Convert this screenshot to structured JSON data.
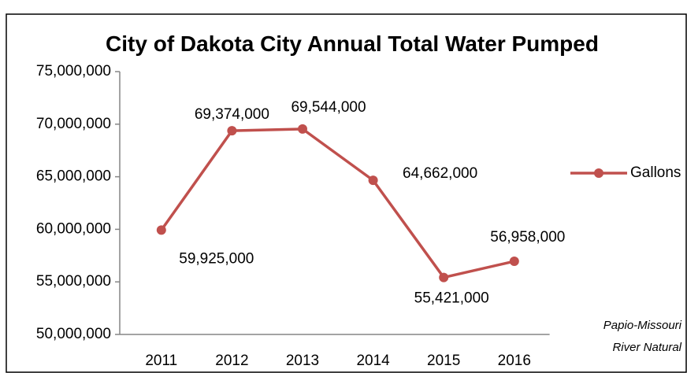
{
  "chart_data": {
    "type": "line",
    "title": "City of Dakota City Annual Total Water Pumped",
    "annotation": "Papio-Missouri River Natural",
    "categories": [
      "2011",
      "2012",
      "2013",
      "2014",
      "2015",
      "2016"
    ],
    "series": [
      {
        "name": "Gallons",
        "color": "#c0504d",
        "values": [
          59925000,
          69374000,
          69544000,
          64662000,
          55421000,
          56958000
        ],
        "value_labels": [
          "59,925,000",
          "69,374,000",
          "69,544,000",
          "64,662,000",
          "55,421,000",
          "56,958,000"
        ]
      }
    ],
    "ylim": [
      50000000,
      75000000
    ],
    "yticks": [
      {
        "value": 50000000,
        "label": "50,000,000"
      },
      {
        "value": 55000000,
        "label": "55,000,000"
      },
      {
        "value": 60000000,
        "label": "60,000,000"
      },
      {
        "value": 65000000,
        "label": "65,000,000"
      },
      {
        "value": 70000000,
        "label": "70,000,000"
      },
      {
        "value": 75000000,
        "label": "75,000,000"
      }
    ],
    "grid": false,
    "legend": "right"
  }
}
